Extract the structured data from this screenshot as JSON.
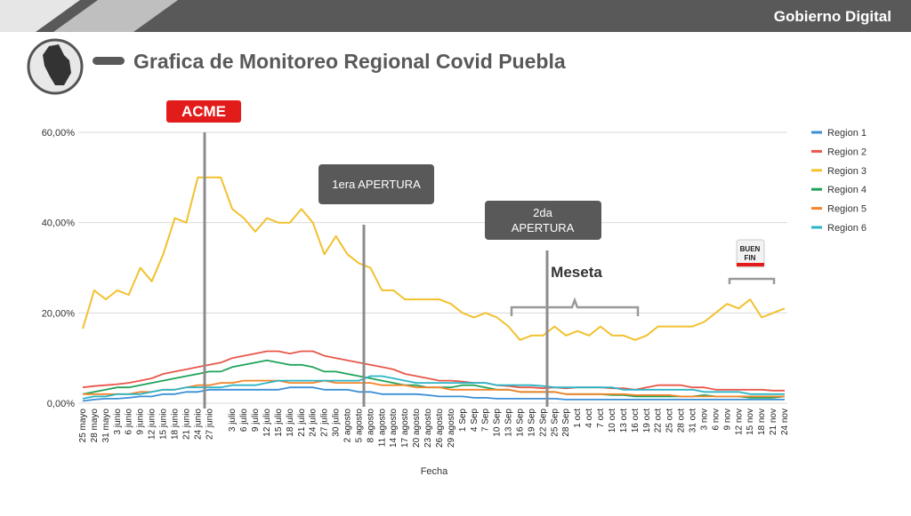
{
  "header": {
    "title": "Gobierno Digital"
  },
  "slide_title": "Grafica de Monitoreo Regional Covid Puebla",
  "chart_data": {
    "type": "line",
    "x_label": "Fecha",
    "categories": [
      "25 mayo",
      "28 mayo",
      "31 mayo",
      "3 junio",
      "6 junio",
      "9 junio",
      "12 junio",
      "15 junio",
      "18 junio",
      "21 junio",
      "24 junio",
      "27 junio",
      null,
      "3 julio",
      "6 julio",
      "9 julio",
      "12 julio",
      "15 julio",
      "18 julio",
      "21 julio",
      "24 julio",
      "27 julio",
      "30 julio",
      "2 agosto",
      "5 agosto",
      "8 agosto",
      "11 agosto",
      "14 agosto",
      "17 agosto",
      "20 agosto",
      "23 agosto",
      "26 agosto",
      "29 agosto",
      "1 Sep",
      "4 Sep",
      "7 Sep",
      "10 Sep",
      "13 Sep",
      "16 Sep",
      "19 Sep",
      "22 Sep",
      "25 Sep",
      "28 Sep",
      "1 oct",
      "4 oct",
      "7 oct",
      "10 oct",
      "13 oct",
      "16 oct",
      "19 oct",
      "22 oct",
      "25 oct",
      "28 oct",
      "31 oct",
      "3 nov",
      "6 nov",
      "9 nov",
      "12 nov",
      "15 nov",
      "18 nov",
      "21 nov",
      "24 nov"
    ],
    "ylim": [
      0,
      60
    ],
    "yticks": [
      {
        "value": 0,
        "label": "0,00%"
      },
      {
        "value": 20,
        "label": "20,00%"
      },
      {
        "value": 40,
        "label": "40,00%"
      },
      {
        "value": 60,
        "label": "60,00%"
      }
    ],
    "grid": true,
    "legend": "right",
    "series": [
      {
        "name": "Region 1",
        "color": "#3b8fd6",
        "values": [
          0.5,
          0.8,
          1,
          1,
          1.2,
          1.5,
          1.5,
          2,
          2,
          2.5,
          2.5,
          3,
          3,
          3,
          3,
          3,
          3,
          3,
          3.5,
          3.5,
          3.5,
          3,
          3,
          3,
          2.5,
          2.5,
          2,
          2,
          2,
          2,
          1.8,
          1.5,
          1.5,
          1.5,
          1.2,
          1.2,
          1,
          1,
          1,
          1,
          1,
          1,
          0.8,
          0.8,
          0.8,
          0.8,
          0.8,
          0.8,
          0.8,
          0.8,
          0.8,
          0.8,
          0.8,
          0.8,
          0.8,
          0.8,
          0.8,
          0.8,
          0.8,
          0.8,
          0.8,
          0.8
        ]
      },
      {
        "name": "Region 2",
        "color": "#e8574a",
        "values": [
          3.5,
          3.8,
          4,
          4.2,
          4.5,
          5,
          5.5,
          6.5,
          7,
          7.5,
          8,
          8.5,
          9,
          10,
          10.5,
          11,
          11.5,
          11.5,
          11,
          11.5,
          11.5,
          10.5,
          10,
          9.5,
          9,
          8.5,
          8,
          7.5,
          6.5,
          6,
          5.5,
          5,
          5,
          4.8,
          4.5,
          4.5,
          4,
          3.8,
          3.5,
          3.5,
          3.3,
          3.5,
          3.3,
          3.5,
          3.5,
          3.5,
          3.3,
          3.3,
          3,
          3.5,
          4,
          4,
          4,
          3.5,
          3.5,
          3,
          3,
          3,
          3,
          3,
          2.8,
          2.8
        ]
      },
      {
        "name": "Region 3",
        "color": "#f2c12e",
        "values": [
          16.5,
          25,
          23,
          25,
          24,
          30,
          27,
          33,
          41,
          40,
          50,
          50,
          50,
          43,
          41,
          38,
          41,
          40,
          40,
          43,
          40,
          33,
          37,
          33,
          31,
          30,
          25,
          25,
          23,
          23,
          23,
          23,
          22,
          20,
          19,
          20,
          19,
          17,
          14,
          15,
          15,
          17,
          15,
          16,
          15,
          17,
          15,
          15,
          14,
          15,
          17,
          17,
          17,
          17,
          18,
          20,
          22,
          21,
          23,
          19,
          20,
          21
        ]
      },
      {
        "name": "Region 4",
        "color": "#1fa35a",
        "values": [
          2,
          2.5,
          3,
          3.5,
          3.5,
          4,
          4.5,
          5,
          5.5,
          6,
          6.5,
          7,
          7,
          8,
          8.5,
          9,
          9.5,
          9,
          8.5,
          8.5,
          8,
          7,
          7,
          6.5,
          6,
          5.5,
          5,
          4.5,
          4,
          4,
          3.5,
          3.5,
          3.5,
          4,
          4,
          3.5,
          3,
          3,
          2.5,
          2.5,
          2.5,
          2.5,
          2,
          2,
          2,
          2,
          1.8,
          1.8,
          1.5,
          1.5,
          1.5,
          1.5,
          1.5,
          1.5,
          1.8,
          1.5,
          1.5,
          1.5,
          1.2,
          1.2,
          1.2,
          1.5
        ]
      },
      {
        "name": "Region 5",
        "color": "#f5842a",
        "values": [
          2,
          2,
          2,
          2,
          2,
          2.5,
          2.5,
          3,
          3,
          3.5,
          4,
          4,
          4.5,
          4.5,
          5,
          5,
          5,
          5,
          4.5,
          4.5,
          4.5,
          5,
          4.5,
          4.5,
          4.5,
          4.5,
          4,
          4,
          4,
          3.5,
          3.5,
          3.5,
          3,
          3,
          3,
          3,
          3,
          3,
          2.5,
          2.5,
          2.5,
          2.5,
          2,
          2,
          2,
          2,
          2,
          2,
          1.8,
          1.8,
          1.8,
          1.8,
          1.5,
          1.5,
          1.5,
          1.5,
          1.5,
          1.5,
          1.5,
          1.5,
          1.5,
          1.5
        ]
      },
      {
        "name": "Region 6",
        "color": "#2bb5c6",
        "values": [
          1,
          1.5,
          1.5,
          2,
          2,
          2,
          2.5,
          3,
          3,
          3.5,
          3.5,
          3.5,
          3.5,
          4,
          4,
          4,
          4.5,
          5,
          5,
          5,
          5,
          5,
          5,
          5,
          5,
          6,
          6,
          5.5,
          5,
          4.5,
          4.5,
          4.5,
          4.5,
          4.5,
          4.5,
          4.5,
          4,
          4,
          4,
          4,
          3.8,
          3.5,
          3.5,
          3.5,
          3.5,
          3.5,
          3.5,
          3,
          3,
          3,
          3,
          3,
          3,
          3,
          2.5,
          2.5,
          2.5,
          2.5,
          2,
          2,
          2,
          2
        ]
      }
    ],
    "annotations": {
      "acme": "ACME",
      "apertura1": "1era APERTURA",
      "apertura2": [
        "2da",
        "APERTURA"
      ],
      "meseta": "Meseta",
      "buen_fin": [
        "BUEN",
        "FIN"
      ]
    }
  }
}
